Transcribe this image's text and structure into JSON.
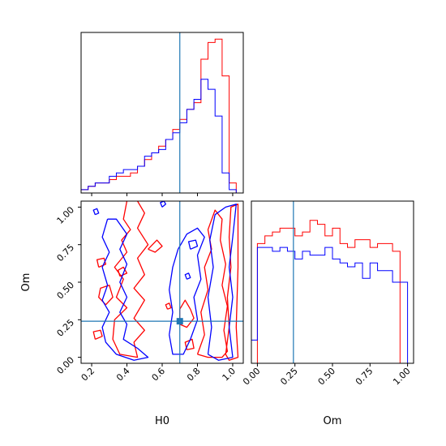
{
  "colors": {
    "series_a": "#ff0000",
    "series_b": "#0000ff",
    "truth": "#1f77b4"
  },
  "truth": {
    "H0": 0.7,
    "Om": 0.24
  },
  "chart_data": [
    {
      "type": "histogram",
      "panel": "H0 marginal",
      "xlim": [
        0.14,
        1.06
      ],
      "bins_x": [
        0.14,
        0.18,
        0.22,
        0.26,
        0.3,
        0.34,
        0.38,
        0.42,
        0.46,
        0.5,
        0.54,
        0.58,
        0.62,
        0.66,
        0.7,
        0.74,
        0.78,
        0.82,
        0.86,
        0.9,
        0.94,
        0.98,
        1.02
      ],
      "series": [
        {
          "color_key": "series_a",
          "values": [
            1,
            2,
            3,
            3,
            4,
            5,
            5,
            6,
            8,
            10,
            12,
            14,
            16,
            19,
            22,
            25,
            27,
            40,
            45,
            46,
            35,
            3
          ]
        },
        {
          "color_key": "series_b",
          "values": [
            1,
            2,
            3,
            3,
            5,
            6,
            7,
            7,
            8,
            11,
            12,
            13,
            16,
            18,
            21,
            25,
            28,
            34,
            31,
            23,
            6,
            1
          ]
        }
      ],
      "xticks": [
        0.2,
        0.4,
        0.6,
        0.8,
        1.0
      ],
      "xticklabels": [
        "0.2",
        "0.4",
        "0.6",
        "0.8",
        "1.0"
      ]
    },
    {
      "type": "contour",
      "panel": "H0 vs Om",
      "xlabel": "H0",
      "ylabel": "Om",
      "xlim": [
        0.14,
        1.06
      ],
      "ylim": [
        -0.04,
        1.04
      ],
      "xticks": [
        0.2,
        0.4,
        0.6,
        0.8,
        1.0
      ],
      "xticklabels": [
        "0.2",
        "0.4",
        "0.6",
        "0.8",
        "1.0"
      ],
      "yticks": [
        0.0,
        0.25,
        0.5,
        0.75,
        1.0
      ],
      "yticklabels": [
        "0.00",
        "0.25",
        "0.50",
        "0.75",
        "1.00"
      ],
      "series": [
        {
          "color_key": "series_a",
          "contours": [
            [
              [
                0.4,
                1.04
              ],
              [
                0.38,
                0.92
              ],
              [
                0.42,
                0.85
              ],
              [
                0.37,
                0.78
              ],
              [
                0.4,
                0.7
              ],
              [
                0.33,
                0.6
              ],
              [
                0.38,
                0.52
              ],
              [
                0.34,
                0.4
              ],
              [
                0.4,
                0.33
              ],
              [
                0.33,
                0.25
              ],
              [
                0.32,
                0.12
              ],
              [
                0.36,
                0.02
              ],
              [
                0.46,
                0.0
              ],
              [
                0.44,
                0.1
              ],
              [
                0.5,
                0.18
              ],
              [
                0.44,
                0.26
              ],
              [
                0.5,
                0.38
              ],
              [
                0.44,
                0.46
              ],
              [
                0.5,
                0.55
              ],
              [
                0.46,
                0.66
              ],
              [
                0.52,
                0.75
              ],
              [
                0.46,
                0.86
              ],
              [
                0.5,
                0.96
              ],
              [
                0.46,
                1.04
              ]
            ],
            [
              [
                0.28,
                0.35
              ],
              [
                0.32,
                0.4
              ],
              [
                0.3,
                0.48
              ],
              [
                0.25,
                0.46
              ],
              [
                0.24,
                0.4
              ],
              [
                0.28,
                0.35
              ]
            ],
            [
              [
                0.24,
                0.6
              ],
              [
                0.28,
                0.62
              ],
              [
                0.27,
                0.66
              ],
              [
                0.23,
                0.65
              ],
              [
                0.24,
                0.6
              ]
            ],
            [
              [
                0.52,
                0.72
              ],
              [
                0.56,
                0.7
              ],
              [
                0.6,
                0.74
              ],
              [
                0.57,
                0.78
              ],
              [
                0.52,
                0.72
              ]
            ],
            [
              [
                0.36,
                0.54
              ],
              [
                0.4,
                0.56
              ],
              [
                0.38,
                0.6
              ],
              [
                0.35,
                0.58
              ],
              [
                0.36,
                0.54
              ]
            ],
            [
              [
                0.22,
                0.12
              ],
              [
                0.26,
                0.14
              ],
              [
                0.25,
                0.18
              ],
              [
                0.21,
                0.17
              ],
              [
                0.22,
                0.12
              ]
            ],
            [
              [
                0.7,
                0.22
              ],
              [
                0.74,
                0.2
              ],
              [
                0.78,
                0.26
              ],
              [
                0.76,
                0.32
              ],
              [
                0.73,
                0.38
              ],
              [
                0.7,
                0.32
              ],
              [
                0.7,
                0.22
              ]
            ],
            [
              [
                0.74,
                0.05
              ],
              [
                0.78,
                0.06
              ],
              [
                0.77,
                0.12
              ],
              [
                0.73,
                0.1
              ],
              [
                0.74,
                0.05
              ]
            ],
            [
              [
                0.8,
                0.02
              ],
              [
                0.84,
                0.15
              ],
              [
                0.82,
                0.3
              ],
              [
                0.86,
                0.45
              ],
              [
                0.84,
                0.6
              ],
              [
                0.88,
                0.72
              ],
              [
                0.86,
                0.85
              ],
              [
                0.9,
                0.98
              ],
              [
                0.94,
                0.92
              ],
              [
                0.93,
                0.78
              ],
              [
                0.96,
                0.62
              ],
              [
                0.94,
                0.48
              ],
              [
                0.97,
                0.34
              ],
              [
                0.95,
                0.18
              ],
              [
                0.97,
                0.04
              ],
              [
                0.94,
                0.0
              ],
              [
                0.86,
                0.0
              ],
              [
                0.8,
                0.02
              ]
            ],
            [
              [
                0.96,
                0.02
              ],
              [
                0.98,
                0.2
              ],
              [
                0.97,
                0.4
              ],
              [
                0.99,
                0.6
              ],
              [
                0.98,
                0.8
              ],
              [
                0.99,
                1.0
              ],
              [
                1.03,
                1.02
              ],
              [
                1.03,
                0.6
              ],
              [
                1.02,
                0.2
              ],
              [
                1.03,
                0.0
              ],
              [
                0.98,
                -0.02
              ],
              [
                0.96,
                0.02
              ]
            ],
            [
              [
                0.63,
                0.32
              ],
              [
                0.65,
                0.33
              ],
              [
                0.64,
                0.36
              ],
              [
                0.62,
                0.35
              ],
              [
                0.63,
                0.32
              ]
            ]
          ]
        },
        {
          "color_key": "series_b",
          "contours": [
            [
              [
                0.22,
                0.95
              ],
              [
                0.24,
                0.96
              ],
              [
                0.23,
                0.99
              ],
              [
                0.21,
                0.98
              ],
              [
                0.22,
                0.95
              ]
            ],
            [
              [
                0.29,
                0.92
              ],
              [
                0.26,
                0.8
              ],
              [
                0.3,
                0.7
              ],
              [
                0.26,
                0.6
              ],
              [
                0.29,
                0.48
              ],
              [
                0.26,
                0.38
              ],
              [
                0.3,
                0.3
              ],
              [
                0.26,
                0.2
              ],
              [
                0.28,
                0.1
              ],
              [
                0.34,
                0.02
              ],
              [
                0.44,
                -0.02
              ],
              [
                0.52,
                0.0
              ],
              [
                0.46,
                0.06
              ],
              [
                0.38,
                0.12
              ],
              [
                0.4,
                0.22
              ],
              [
                0.36,
                0.3
              ],
              [
                0.4,
                0.4
              ],
              [
                0.36,
                0.5
              ],
              [
                0.4,
                0.62
              ],
              [
                0.36,
                0.72
              ],
              [
                0.4,
                0.82
              ],
              [
                0.34,
                0.92
              ],
              [
                0.29,
                0.92
              ]
            ],
            [
              [
                0.6,
                1.0
              ],
              [
                0.62,
                1.02
              ],
              [
                0.61,
                1.04
              ],
              [
                0.59,
                1.03
              ],
              [
                0.6,
                1.0
              ]
            ],
            [
              [
                0.64,
                0.15
              ],
              [
                0.66,
                0.3
              ],
              [
                0.64,
                0.45
              ],
              [
                0.66,
                0.6
              ],
              [
                0.69,
                0.72
              ],
              [
                0.74,
                0.82
              ],
              [
                0.8,
                0.86
              ],
              [
                0.84,
                0.8
              ],
              [
                0.8,
                0.68
              ],
              [
                0.82,
                0.52
              ],
              [
                0.78,
                0.4
              ],
              [
                0.8,
                0.25
              ],
              [
                0.76,
                0.12
              ],
              [
                0.72,
                0.02
              ],
              [
                0.66,
                0.02
              ],
              [
                0.64,
                0.15
              ]
            ],
            [
              [
                0.76,
                0.72
              ],
              [
                0.8,
                0.74
              ],
              [
                0.79,
                0.78
              ],
              [
                0.75,
                0.77
              ],
              [
                0.76,
                0.72
              ]
            ],
            [
              [
                0.86,
                0.02
              ],
              [
                0.88,
                0.2
              ],
              [
                0.86,
                0.4
              ],
              [
                0.89,
                0.6
              ],
              [
                0.87,
                0.78
              ],
              [
                0.9,
                0.95
              ],
              [
                0.96,
                1.0
              ],
              [
                1.02,
                1.02
              ],
              [
                1.0,
                0.8
              ],
              [
                0.98,
                0.6
              ],
              [
                1.0,
                0.4
              ],
              [
                0.98,
                0.2
              ],
              [
                1.0,
                0.0
              ],
              [
                0.92,
                -0.02
              ],
              [
                0.86,
                0.02
              ]
            ],
            [
              [
                0.74,
                0.52
              ],
              [
                0.76,
                0.53
              ],
              [
                0.75,
                0.56
              ],
              [
                0.73,
                0.55
              ],
              [
                0.74,
                0.52
              ]
            ]
          ]
        }
      ]
    },
    {
      "type": "histogram",
      "panel": "Om marginal",
      "xlabel": "Om",
      "xlim": [
        -0.04,
        1.04
      ],
      "bins_x": [
        -0.04,
        0.0,
        0.05,
        0.1,
        0.15,
        0.2,
        0.25,
        0.3,
        0.35,
        0.4,
        0.45,
        0.5,
        0.55,
        0.6,
        0.65,
        0.7,
        0.75,
        0.8,
        0.85,
        0.9,
        0.95,
        1.0
      ],
      "series": [
        {
          "color_key": "series_a",
          "values": [
            0,
            31,
            33,
            34,
            35,
            35,
            33,
            34,
            37,
            36,
            33,
            35,
            31,
            30,
            32,
            32,
            30,
            31,
            31,
            29,
            0
          ]
        },
        {
          "color_key": "series_b",
          "values": [
            6,
            30,
            30,
            29,
            30,
            29,
            27,
            29,
            28,
            28,
            30,
            27,
            26,
            25,
            26,
            22,
            26,
            24,
            24,
            21,
            21
          ]
        }
      ],
      "xticks": [
        0.0,
        0.25,
        0.5,
        0.75,
        1.0
      ],
      "xticklabels": [
        "0.00",
        "0.25",
        "0.50",
        "0.75",
        "1.00"
      ]
    }
  ]
}
